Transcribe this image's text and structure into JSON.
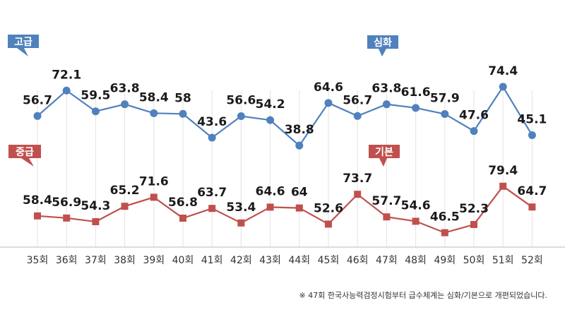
{
  "chart_data": {
    "type": "line",
    "categories": [
      "35회",
      "36회",
      "37회",
      "38회",
      "39회",
      "40회",
      "41회",
      "42회",
      "43회",
      "44회",
      "45회",
      "46회",
      "47회",
      "48회",
      "49회",
      "50회",
      "51회",
      "52회"
    ],
    "series": [
      {
        "name": "고급",
        "name2": "심화",
        "color": "#4f81bd",
        "values": [
          56.7,
          72.1,
          59.5,
          63.8,
          58.4,
          58,
          43.6,
          56.6,
          54.2,
          38.8,
          64.6,
          56.7,
          63.8,
          61.6,
          57.9,
          47.6,
          74.4,
          45.1
        ]
      },
      {
        "name": "중급",
        "name2": "기본",
        "color": "#c0504d",
        "values": [
          58.4,
          56.9,
          54.3,
          65.2,
          71.6,
          56.8,
          63.7,
          53.4,
          64.6,
          64,
          52.6,
          73.7,
          57.7,
          54.6,
          46.5,
          52.3,
          79.4,
          64.7
        ]
      }
    ],
    "grid": "vertical",
    "legend": "callout tags"
  },
  "footnote": "※ 47회 한국사능력검정시험부터 급수체계는 심화/기본으로 개편되었습니다."
}
